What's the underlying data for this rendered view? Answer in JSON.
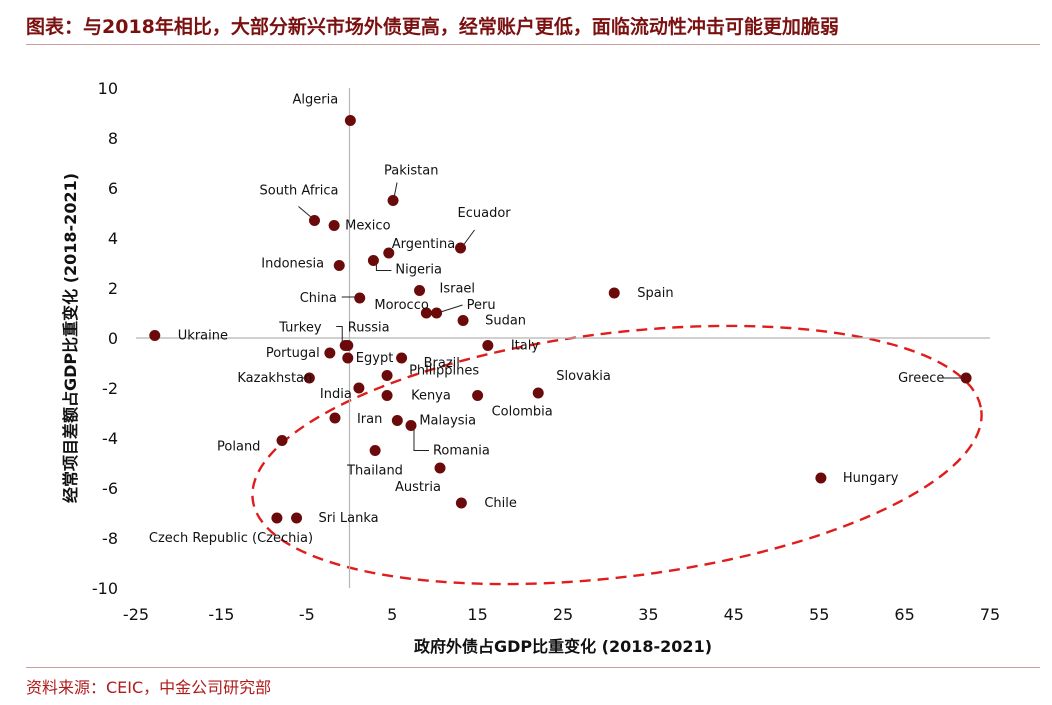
{
  "title": "图表：与2018年相比，大部分新兴市场外债更高，经常账户更低，面临流动性冲击可能更加脆弱",
  "source": "资料来源：CEIC，中金公司研究部",
  "colors": {
    "title": "#7a1010",
    "point": "#6b0a0a",
    "ellipse": "#e01c1c"
  },
  "chart_data": {
    "type": "scatter",
    "xlabel": "政府外债占GDP比重变化 (2018-2021)",
    "ylabel": "经常项目差额占GDP比重变化 (2018-2021)",
    "xlim": [
      -25,
      75
    ],
    "ylim": [
      -10,
      10
    ],
    "x_ticks": [
      -25,
      -15,
      -5,
      5,
      15,
      25,
      35,
      45,
      55,
      65,
      75
    ],
    "y_ticks": [
      10,
      8,
      6,
      4,
      2,
      0,
      -2,
      -4,
      -6,
      -8,
      -10
    ],
    "x_tick_labels": [
      "-25",
      "-15",
      "-5",
      "5",
      "15",
      "25",
      "35",
      "45",
      "55",
      "65",
      "75"
    ],
    "y_tick_labels": [
      "10",
      "8",
      "6",
      "4",
      "2",
      "0",
      "-2",
      "-4",
      "-6",
      "-8",
      "-10"
    ],
    "grid": false,
    "annotation": "dashed red ellipse highlighting countries with higher external debt and lower current account",
    "points": [
      {
        "label": "Algeria",
        "x": 0.1,
        "y": 8.7
      },
      {
        "label": "Pakistan",
        "x": 5.1,
        "y": 5.5
      },
      {
        "label": "South Africa",
        "x": -4.1,
        "y": 4.7
      },
      {
        "label": "Mexico",
        "x": -1.8,
        "y": 4.5
      },
      {
        "label": "Ecuador",
        "x": 13.0,
        "y": 3.6
      },
      {
        "label": "Argentina",
        "x": 4.6,
        "y": 3.4
      },
      {
        "label": "Indonesia",
        "x": -1.2,
        "y": 2.9
      },
      {
        "label": "Nigeria",
        "x": 2.8,
        "y": 3.1
      },
      {
        "label": "Israel",
        "x": 8.2,
        "y": 1.9
      },
      {
        "label": "Spain",
        "x": 31.0,
        "y": 1.8
      },
      {
        "label": "China",
        "x": 1.2,
        "y": 1.6
      },
      {
        "label": "Morocco",
        "x": 9.0,
        "y": 1.0
      },
      {
        "label": "Peru",
        "x": 10.2,
        "y": 1.0
      },
      {
        "label": "Sudan",
        "x": 13.3,
        "y": 0.7
      },
      {
        "label": "Ukraine",
        "x": -22.8,
        "y": 0.1
      },
      {
        "label": "Turkey",
        "x": -0.5,
        "y": -0.3
      },
      {
        "label": "Russia",
        "x": -0.2,
        "y": -0.3
      },
      {
        "label": "Italy",
        "x": 16.2,
        "y": -0.3
      },
      {
        "label": "Portugal",
        "x": -2.3,
        "y": -0.6
      },
      {
        "label": "Egypt",
        "x": -0.2,
        "y": -0.8
      },
      {
        "label": "Brazil",
        "x": 6.1,
        "y": -0.8
      },
      {
        "label": "Kazakhstan",
        "x": -4.7,
        "y": -1.6
      },
      {
        "label": "Philippines",
        "x": 4.4,
        "y": -1.5
      },
      {
        "label": "India",
        "x": 1.1,
        "y": -2.0
      },
      {
        "label": "Kenya",
        "x": 4.4,
        "y": -2.3
      },
      {
        "label": "Colombia",
        "x": 15.0,
        "y": -2.3
      },
      {
        "label": "Slovakia",
        "x": 22.1,
        "y": -2.2
      },
      {
        "label": "Greece",
        "x": 72.2,
        "y": -1.6
      },
      {
        "label": "Iran",
        "x": -1.7,
        "y": -3.2
      },
      {
        "label": "Malaysia",
        "x": 5.6,
        "y": -3.3
      },
      {
        "label": "Romania",
        "x": 7.2,
        "y": -3.5
      },
      {
        "label": "Poland",
        "x": -7.9,
        "y": -4.1
      },
      {
        "label": "Thailand",
        "x": 3.0,
        "y": -4.5
      },
      {
        "label": "Austria",
        "x": 10.6,
        "y": -5.2
      },
      {
        "label": "Hungary",
        "x": 55.2,
        "y": -5.6
      },
      {
        "label": "Chile",
        "x": 13.1,
        "y": -6.6
      },
      {
        "label": "Sri Lanka",
        "x": -6.2,
        "y": -7.2
      },
      {
        "label": "Czech Republic (Czechia)",
        "x": -8.5,
        "y": -7.2
      }
    ]
  }
}
